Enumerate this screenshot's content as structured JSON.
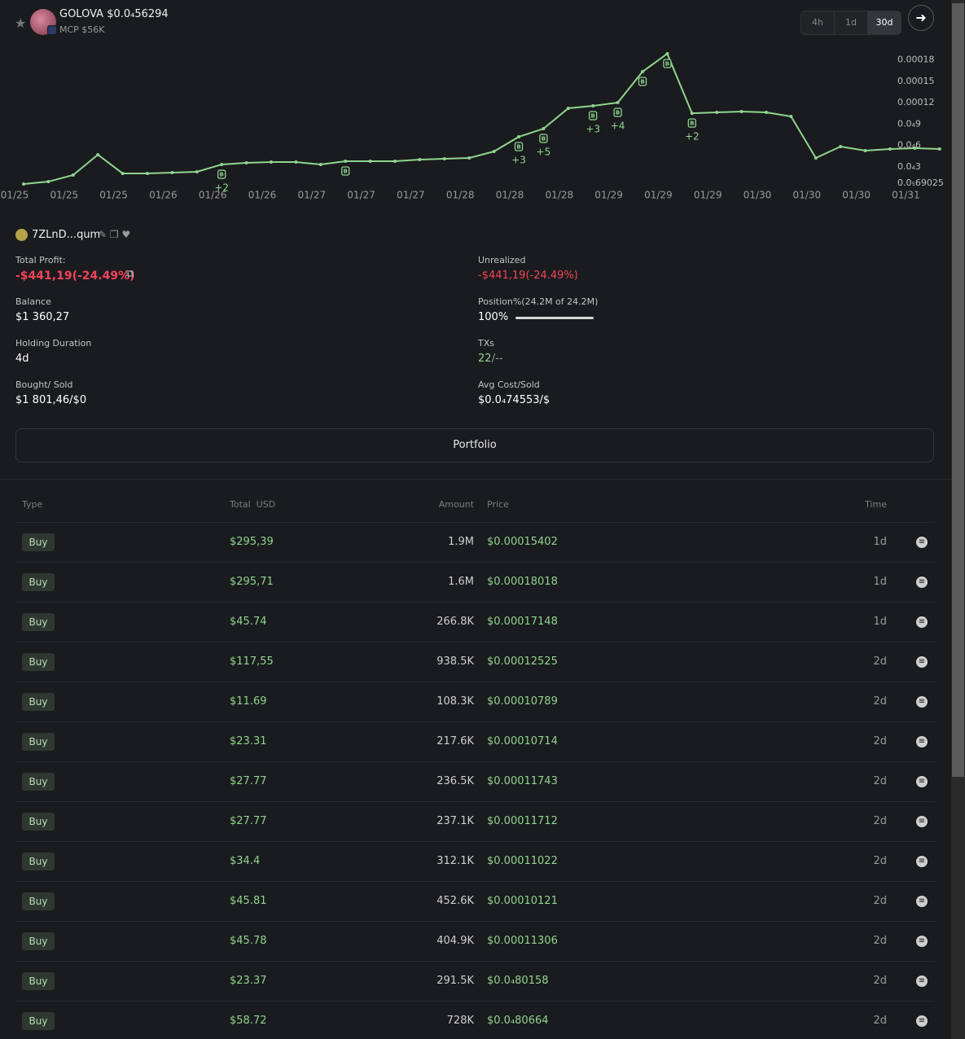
{
  "header": {
    "token": "GOLOVA",
    "price": "$0.0₄56294",
    "mcp": "MCP $56K",
    "timeframes": [
      "4h",
      "1d",
      "30d"
    ],
    "active_timeframe": "30d"
  },
  "chart_data": {
    "type": "line",
    "color": "#8fd58f",
    "values": [
      5.7e-06,
      9.1e-06,
      1.83e-05,
      4.69e-05,
      2.06e-05,
      2.06e-05,
      2.17e-05,
      2.29e-05,
      3.31e-05,
      3.54e-05,
      3.66e-05,
      3.66e-05,
      3.31e-05,
      3.77e-05,
      3.77e-05,
      3.77e-05,
      4e-05,
      4.11e-05,
      4.23e-05,
      5.14e-05,
      7.2e-05,
      8.34e-05,
      0.000112,
      0.0001154,
      0.00012,
      0.0001634,
      0.0001886,
      0.000105,
      0.0001063,
      0.0001074,
      0.0001063,
      0.0001006,
      4.23e-05,
      5.83e-05,
      5.26e-05,
      5.49e-05,
      5.6e-05,
      5.49e-05
    ],
    "x_labels": [
      "01/25",
      "01/25",
      "01/25",
      "01/26",
      "01/26",
      "01/26",
      "01/27",
      "01/27",
      "01/27",
      "01/28",
      "01/28",
      "01/28",
      "01/29",
      "01/29",
      "01/29",
      "01/30",
      "01/30",
      "01/30",
      "01/31"
    ],
    "ylim": [
      0,
      0.0002
    ],
    "yticks": [
      {
        "value": 6.9025e-06,
        "label": "0.0₅69025"
      },
      {
        "value": 3e-05,
        "label": "0.0₄3"
      },
      {
        "value": 6e-05,
        "label": "0.0₄6"
      },
      {
        "value": 9e-05,
        "label": "0.0₄9"
      },
      0.00012,
      0.00015,
      0.00018
    ],
    "markers": [
      null,
      null,
      null,
      null,
      null,
      null,
      null,
      null,
      "B",
      null,
      null,
      null,
      null,
      "B",
      null,
      null,
      null,
      null,
      null,
      null,
      "B",
      "B",
      null,
      "B",
      "B",
      "B",
      "B",
      "B",
      null,
      null,
      null,
      null,
      null,
      null,
      null,
      null,
      null,
      null
    ],
    "marker_counts": [
      null,
      null,
      null,
      null,
      null,
      null,
      null,
      null,
      "+2",
      null,
      null,
      null,
      null,
      null,
      null,
      null,
      null,
      null,
      null,
      null,
      "+3",
      "+5",
      null,
      "+3",
      "+4",
      null,
      null,
      "+2",
      null,
      null,
      null,
      null,
      null,
      null,
      null,
      null,
      null,
      null
    ]
  },
  "wallet": {
    "address": "7ZLnD...qum"
  },
  "stats": {
    "left": [
      {
        "label": "Total Profit:",
        "value": "-$441,19(-24.49%)"
      },
      {
        "label": "Balance",
        "value": "$1 360,27"
      },
      {
        "label": "Holding Duration",
        "value": "4d"
      },
      {
        "label": "Bought/ Sold",
        "value": "$1 801,46/$0"
      }
    ],
    "right": [
      {
        "label": "Unrealized",
        "value": "-$441,19(-24.49%)"
      },
      {
        "label": "Position%(24.2M of 24.2M)",
        "value": "100%"
      },
      {
        "label": "TXs",
        "value": "22",
        "suffix": "/--"
      },
      {
        "label": "Avg Cost/Sold",
        "value": "$0.0₄74553/$"
      }
    ]
  },
  "portfolio_button": "Portfolio",
  "table": {
    "headers": [
      "Type",
      "Total  USD",
      "Amount",
      "Price",
      "Time"
    ],
    "rows": [
      [
        "Buy",
        "$295,39",
        "1.9M",
        "$0.00015402",
        "1d"
      ],
      [
        "Buy",
        "$295,71",
        "1.6M",
        "$0.00018018",
        "1d"
      ],
      [
        "Buy",
        "$45.74",
        "266.8K",
        "$0.00017148",
        "1d"
      ],
      [
        "Buy",
        "$117,55",
        "938.5K",
        "$0.00012525",
        "2d"
      ],
      [
        "Buy",
        "$11.69",
        "108.3K",
        "$0.00010789",
        "2d"
      ],
      [
        "Buy",
        "$23.31",
        "217.6K",
        "$0.00010714",
        "2d"
      ],
      [
        "Buy",
        "$27.77",
        "236.5K",
        "$0.00011743",
        "2d"
      ],
      [
        "Buy",
        "$27.77",
        "237.1K",
        "$0.00011712",
        "2d"
      ],
      [
        "Buy",
        "$34.4",
        "312.1K",
        "$0.00011022",
        "2d"
      ],
      [
        "Buy",
        "$45.81",
        "452.6K",
        "$0.00010121",
        "2d"
      ],
      [
        "Buy",
        "$45.78",
        "404.9K",
        "$0.00011306",
        "2d"
      ],
      [
        "Buy",
        "$23.37",
        "291.5K",
        "$0.0₄80158",
        "2d"
      ],
      [
        "Buy",
        "$58.72",
        "728K",
        "$0.0₄80664",
        "2d"
      ]
    ]
  }
}
